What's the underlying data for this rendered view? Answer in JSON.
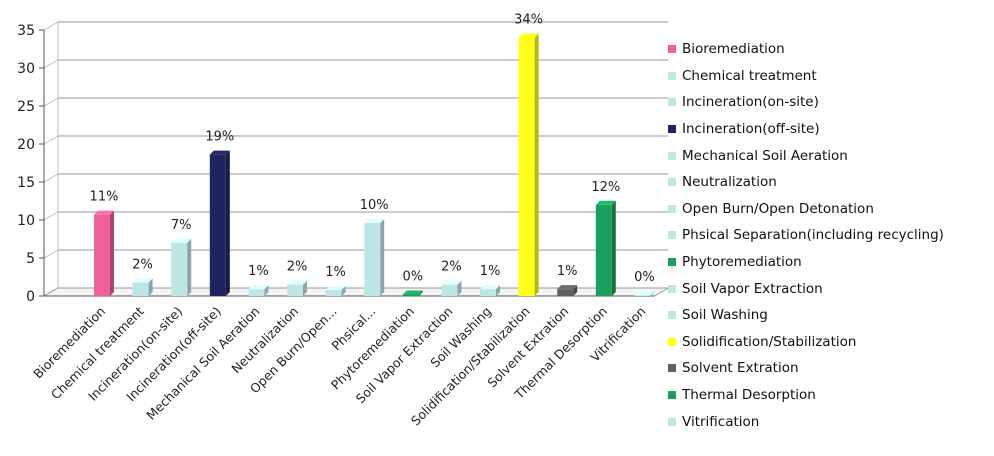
{
  "chart_data": {
    "type": "bar",
    "title": "",
    "xlabel": "",
    "ylabel": "",
    "ylim": [
      0,
      35
    ],
    "yticks": [
      0,
      5,
      10,
      15,
      20,
      25,
      30,
      35
    ],
    "grid": true,
    "legend_position": "right",
    "categories": [
      "Bioremediation",
      "Chemical treatment",
      "Incineration(on-site)",
      "Incineration(off-site)",
      "Mechanical Soil Aeration",
      "Neutralization",
      "Open Burn/Open...",
      "Phsical...",
      "Phytoremediation",
      "Soil Vapor Extraction",
      "Soil Washing",
      "Solidification/Stabilization",
      "Solvent Extration",
      "Thermal Desorption",
      "Vitrification"
    ],
    "values": [
      10.7,
      1.8,
      7.0,
      18.6,
      0.9,
      1.5,
      0.8,
      9.6,
      0.2,
      1.5,
      0.9,
      34.0,
      0.9,
      12.0,
      0.1
    ],
    "data_labels": [
      "11%",
      "2%",
      "7%",
      "19%",
      "1%",
      "2%",
      "1%",
      "10%",
      "0%",
      "2%",
      "1%",
      "34%",
      "1%",
      "12%",
      "0%"
    ],
    "colors": [
      "#f0609a",
      "#bfe6e6",
      "#bfe6e6",
      "#20245e",
      "#bfe6e6",
      "#bfe6e6",
      "#bfe6e6",
      "#bfe6e6",
      "#1aa05c",
      "#bfe6e6",
      "#bfe6e6",
      "#ffff1a",
      "#606060",
      "#1aa05c",
      "#bfe6e6"
    ],
    "legend": [
      {
        "label": "Bioremediation",
        "color": "#f0609a"
      },
      {
        "label": "Chemical treatment",
        "color": "#bfe6e6"
      },
      {
        "label": "Incineration(on-site)",
        "color": "#bfe6e6"
      },
      {
        "label": "Incineration(off-site)",
        "color": "#20245e"
      },
      {
        "label": "Mechanical Soil Aeration",
        "color": "#bfe6e6"
      },
      {
        "label": "Neutralization",
        "color": "#bfe6e6"
      },
      {
        "label": "Open Burn/Open Detonation",
        "color": "#bfe6e6"
      },
      {
        "label": "Phsical Separation(including recycling)",
        "color": "#bfe6e6"
      },
      {
        "label": "Phytoremediation",
        "color": "#1aa05c"
      },
      {
        "label": "Soil Vapor Extraction",
        "color": "#bfe6e6"
      },
      {
        "label": "Soil Washing",
        "color": "#bfe6e6"
      },
      {
        "label": "Solidification/Stabilization",
        "color": "#ffff1a"
      },
      {
        "label": "Solvent Extration",
        "color": "#606060"
      },
      {
        "label": "Thermal Desorption",
        "color": "#1aa05c"
      },
      {
        "label": "Vitrification",
        "color": "#bfe6e6"
      }
    ]
  }
}
